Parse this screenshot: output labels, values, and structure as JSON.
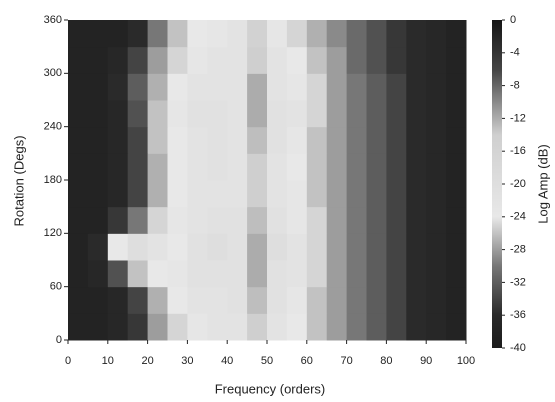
{
  "chart_data": {
    "type": "heatmap",
    "xlabel": "Frequency (orders)",
    "ylabel": "Rotation (Degs)",
    "colorbar_label": "Log Amp (dB)",
    "x": [
      2.5,
      7.5,
      12.5,
      17.5,
      22.5,
      27.5,
      32.5,
      37.5,
      42.5,
      47.5,
      52.5,
      57.5,
      62.5,
      67.5,
      72.5,
      77.5,
      82.5,
      87.5,
      92.5,
      97.5
    ],
    "y": [
      15,
      45,
      75,
      105,
      135,
      165,
      195,
      225,
      255,
      285,
      315,
      345
    ],
    "values": [
      [
        -38,
        -38,
        -37,
        -35,
        -28,
        -25,
        -23,
        -22,
        -22,
        -14,
        -22,
        -24,
        -26,
        -28,
        -30,
        -32,
        -34,
        -36,
        -37,
        -38
      ],
      [
        -38,
        -38,
        -37,
        -34,
        -27,
        -24,
        -22,
        -22,
        -21,
        -13,
        -21,
        -23,
        -26,
        -28,
        -30,
        -32,
        -34,
        -36,
        -37,
        -38
      ],
      [
        -38,
        -37,
        -33,
        -26,
        -24,
        -23,
        -21,
        -21,
        -21,
        -12,
        -21,
        -22,
        -25,
        -28,
        -30,
        -32,
        -34,
        -36,
        -37,
        -38
      ],
      [
        -38,
        -36,
        -24,
        -20,
        -22,
        -24,
        -21,
        -20,
        -21,
        -12,
        -20,
        -22,
        -25,
        -28,
        -30,
        -32,
        -34,
        -36,
        -37,
        -38
      ],
      [
        -38,
        -38,
        -35,
        -30,
        -25,
        -23,
        -22,
        -21,
        -21,
        -13,
        -21,
        -23,
        -25,
        -28,
        -30,
        -32,
        -34,
        -36,
        -37,
        -38
      ],
      [
        -38,
        -38,
        -37,
        -34,
        -27,
        -24,
        -22,
        -22,
        -22,
        -14,
        -22,
        -23,
        -26,
        -28,
        -30,
        -32,
        -34,
        -36,
        -37,
        -38
      ],
      [
        -38,
        -38,
        -37,
        -34,
        -27,
        -24,
        -22,
        -21,
        -22,
        -14,
        -22,
        -24,
        -26,
        -28,
        -30,
        -32,
        -34,
        -36,
        -37,
        -38
      ],
      [
        -38,
        -38,
        -37,
        -34,
        -26,
        -24,
        -22,
        -21,
        -22,
        -13,
        -21,
        -23,
        -26,
        -28,
        -30,
        -32,
        -34,
        -36,
        -37,
        -38
      ],
      [
        -38,
        -38,
        -37,
        -33,
        -26,
        -23,
        -21,
        -21,
        -22,
        -12,
        -21,
        -22,
        -25,
        -28,
        -30,
        -32,
        -34,
        -36,
        -37,
        -38
      ],
      [
        -38,
        -38,
        -36,
        -32,
        -27,
        -24,
        -22,
        -22,
        -22,
        -12,
        -22,
        -23,
        -25,
        -28,
        -30,
        -32,
        -34,
        -36,
        -37,
        -38
      ],
      [
        -38,
        -38,
        -37,
        -34,
        -28,
        -25,
        -23,
        -22,
        -22,
        -14,
        -22,
        -24,
        -26,
        -28,
        -31,
        -33,
        -35,
        -36,
        -37,
        -38
      ],
      [
        -38,
        -38,
        -38,
        -36,
        -30,
        -26,
        -24,
        -23,
        -22,
        -15,
        -23,
        -25,
        -27,
        -29,
        -31,
        -33,
        -35,
        -36,
        -37,
        -38
      ]
    ],
    "colormap": [
      {
        "value": 0,
        "color": "#151515"
      },
      {
        "value": -6,
        "color": "#444444"
      },
      {
        "value": -14,
        "color": "#cfcfcf"
      },
      {
        "value": -24,
        "color": "#e8e8e8"
      },
      {
        "value": -30,
        "color": "#777777"
      },
      {
        "value": -36,
        "color": "#2a2a2a"
      },
      {
        "value": -40,
        "color": "#1c1c1c"
      }
    ],
    "xlim": [
      0,
      100
    ],
    "ylim": [
      0,
      360
    ],
    "clim": [
      -40,
      0
    ],
    "xticks": [
      0,
      10,
      20,
      30,
      40,
      50,
      60,
      70,
      80,
      90,
      100
    ],
    "yticks": [
      0,
      60,
      120,
      180,
      240,
      300,
      360
    ],
    "cticks": [
      0,
      -4,
      -8,
      -12,
      -16,
      -20,
      -24,
      -28,
      -32,
      -36,
      -40
    ]
  }
}
